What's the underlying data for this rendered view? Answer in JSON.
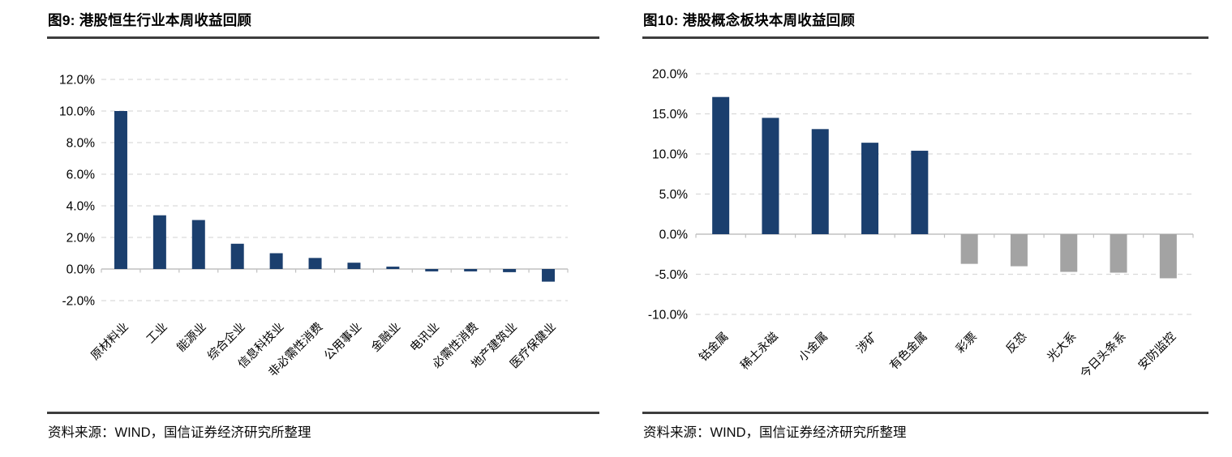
{
  "colors": {
    "bar_navy": "#1b3f6e",
    "bar_gray": "#a3a3a3",
    "gridline": "#d9d9d9",
    "axis_line": "#c0c0c0",
    "rule": "#3d3d3d",
    "text": "#000000"
  },
  "panels": [
    {
      "title": "图9: 港股恒生行业本周收益回顾",
      "source": "资料来源：WIND，国信证券经济研究所整理"
    },
    {
      "title": "图10: 港股概念板块本周收益回顾",
      "source": "资料来源：WIND，国信证券经济研究所整理"
    }
  ],
  "chart_data": [
    {
      "type": "bar",
      "title": "图9: 港股恒生行业本周收益回顾",
      "categories": [
        "原材料业",
        "工业",
        "能源业",
        "综合企业",
        "信息科技业",
        "非必需性消费",
        "公用事业",
        "金融业",
        "电讯业",
        "必需性消费",
        "地产建筑业",
        "医疗保健业"
      ],
      "values": [
        10.0,
        3.4,
        3.1,
        1.6,
        1.0,
        0.7,
        0.4,
        0.15,
        -0.15,
        -0.15,
        -0.2,
        -0.8
      ],
      "unit": "percent",
      "ytick_format": "one-decimal-percent",
      "ylim": [
        -2,
        12
      ],
      "ytick_step": 2,
      "grid": "dashed-horizontal",
      "legend": "none",
      "positive_color": "#1b3f6e",
      "negative_color": "#1b3f6e"
    },
    {
      "type": "bar",
      "title": "图10: 港股概念板块本周收益回顾",
      "categories": [
        "钴金属",
        "稀土永磁",
        "小金属",
        "涉矿",
        "有色金属",
        "彩票",
        "反恐",
        "光大系",
        "今日头条系",
        "安防监控"
      ],
      "values": [
        17.1,
        14.5,
        13.1,
        11.4,
        10.4,
        -3.7,
        -4.0,
        -4.7,
        -4.8,
        -5.5
      ],
      "unit": "percent",
      "ytick_format": "one-decimal-percent",
      "ylim": [
        -10,
        20
      ],
      "ytick_step": 5,
      "grid": "dashed-horizontal",
      "legend": "none",
      "positive_color": "#1b3f6e",
      "negative_color": "#a3a3a3"
    }
  ]
}
